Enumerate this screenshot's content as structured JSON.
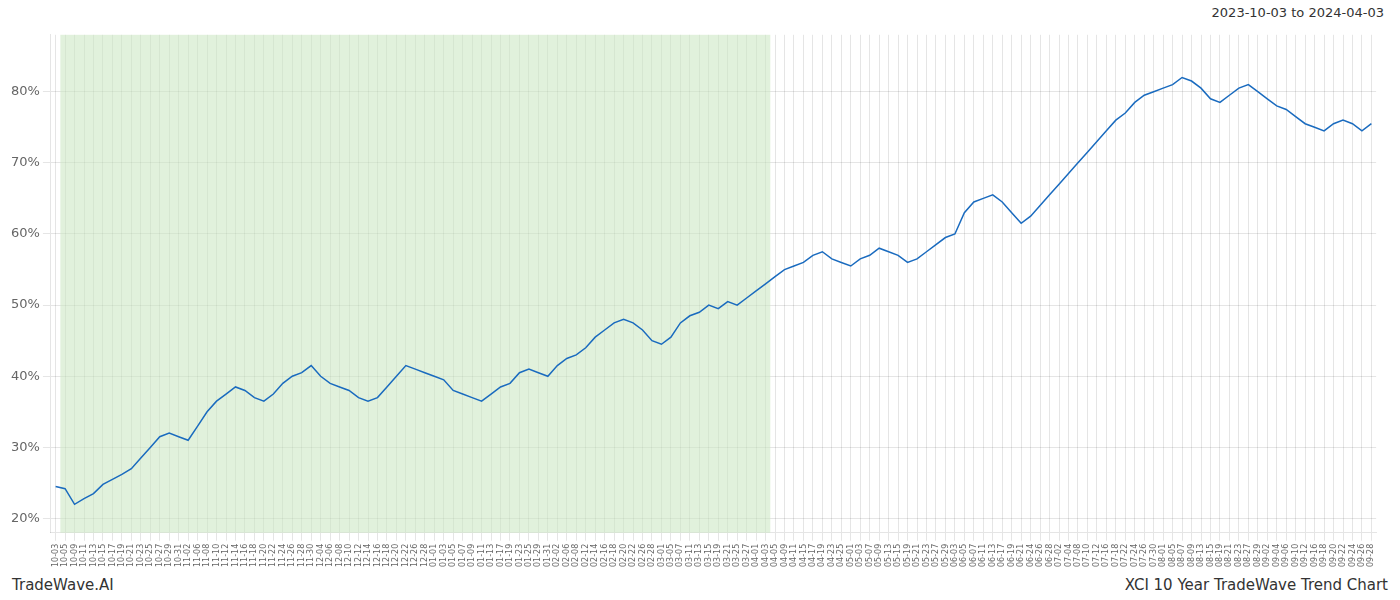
{
  "chart_data": {
    "type": "line",
    "annotations": [
      "2023-10-03 to 2024-04-03",
      "TradeWave.AI",
      "XCI 10 Year TradeWave Trend Chart"
    ],
    "categories": [
      "10-03",
      "10-05",
      "10-09",
      "10-11",
      "10-13",
      "10-15",
      "10-17",
      "10-19",
      "10-21",
      "10-23",
      "10-25",
      "10-27",
      "10-29",
      "10-31",
      "11-02",
      "11-06",
      "11-08",
      "11-10",
      "11-12",
      "11-14",
      "11-16",
      "11-18",
      "11-20",
      "11-22",
      "11-24",
      "11-26",
      "11-28",
      "11-30",
      "12-04",
      "12-06",
      "12-08",
      "12-10",
      "12-12",
      "12-14",
      "12-16",
      "12-18",
      "12-20",
      "12-22",
      "12-26",
      "12-28",
      "01-01",
      "01-03",
      "01-05",
      "01-07",
      "01-09",
      "01-11",
      "01-13",
      "01-17",
      "01-19",
      "01-23",
      "01-25",
      "01-29",
      "01-31",
      "02-02",
      "02-06",
      "02-08",
      "02-12",
      "02-14",
      "02-16",
      "02-18",
      "02-20",
      "02-22",
      "02-26",
      "02-28",
      "03-01",
      "03-05",
      "03-07",
      "03-11",
      "03-13",
      "03-15",
      "03-19",
      "03-21",
      "03-25",
      "03-27",
      "04-01",
      "04-03",
      "04-05",
      "04-09",
      "04-11",
      "04-15",
      "04-17",
      "04-19",
      "04-23",
      "04-25",
      "05-01",
      "05-03",
      "05-07",
      "05-09",
      "05-13",
      "05-15",
      "05-19",
      "05-21",
      "05-23",
      "05-27",
      "05-29",
      "06-03",
      "06-05",
      "06-07",
      "06-11",
      "06-13",
      "06-17",
      "06-19",
      "06-21",
      "06-24",
      "06-26",
      "06-28",
      "07-02",
      "07-04",
      "07-08",
      "07-10",
      "07-12",
      "07-16",
      "07-18",
      "07-22",
      "07-24",
      "07-26",
      "07-30",
      "08-01",
      "08-05",
      "08-07",
      "08-09",
      "08-13",
      "08-15",
      "08-19",
      "08-21",
      "08-23",
      "08-27",
      "08-29",
      "09-02",
      "09-04",
      "09-06",
      "09-10",
      "09-12",
      "09-16",
      "09-18",
      "09-20",
      "09-22",
      "09-24",
      "09-26",
      "09-28"
    ],
    "values": [
      24.5,
      24.2,
      22.0,
      22.8,
      23.5,
      24.8,
      25.5,
      26.2,
      27.0,
      28.5,
      30.0,
      31.5,
      32.0,
      31.5,
      31.0,
      33.0,
      35.0,
      36.5,
      37.5,
      38.5,
      38.0,
      37.0,
      36.5,
      37.5,
      39.0,
      40.0,
      40.5,
      41.5,
      40.0,
      39.0,
      38.5,
      38.0,
      37.0,
      36.5,
      37.0,
      38.5,
      40.0,
      41.5,
      41.0,
      40.5,
      40.0,
      39.5,
      38.0,
      37.5,
      37.0,
      36.5,
      37.5,
      38.5,
      39.0,
      40.5,
      41.0,
      40.5,
      40.0,
      41.5,
      42.5,
      43.0,
      44.0,
      45.5,
      46.5,
      47.5,
      48.0,
      47.5,
      46.5,
      45.0,
      44.5,
      45.5,
      47.5,
      48.5,
      49.0,
      50.0,
      49.5,
      50.5,
      50.0,
      51.0,
      52.0,
      53.0,
      54.0,
      55.0,
      55.5,
      56.0,
      57.0,
      57.5,
      56.5,
      56.0,
      55.5,
      56.5,
      57.0,
      58.0,
      57.5,
      57.0,
      56.0,
      56.5,
      57.5,
      58.5,
      59.5,
      60.0,
      63.0,
      64.5,
      65.0,
      65.5,
      64.5,
      63.0,
      61.5,
      62.5,
      64.0,
      65.5,
      67.0,
      68.5,
      70.0,
      71.5,
      73.0,
      74.5,
      76.0,
      77.0,
      78.5,
      79.5,
      80.0,
      80.5,
      81.0,
      82.0,
      81.5,
      80.5,
      79.0,
      78.5,
      79.5,
      80.5,
      81.0,
      80.0,
      79.0,
      78.0,
      77.5,
      76.5,
      75.5,
      75.0,
      74.5,
      75.5,
      76.0,
      75.5,
      74.5,
      75.5
    ],
    "color": "#1a6bbf",
    "shade": {
      "from": "10-05",
      "to": "04-03",
      "color": "#c8e6c0"
    },
    "ylim": [
      18,
      88
    ],
    "yticks": [
      {
        "value": 20,
        "label": "20%"
      },
      {
        "value": 30,
        "label": "30%"
      },
      {
        "value": 40,
        "label": "40%"
      },
      {
        "value": 50,
        "label": "50%"
      },
      {
        "value": 60,
        "label": "60%"
      },
      {
        "value": 70,
        "label": "70%"
      },
      {
        "value": 80,
        "label": "80%"
      }
    ],
    "grid": true
  }
}
